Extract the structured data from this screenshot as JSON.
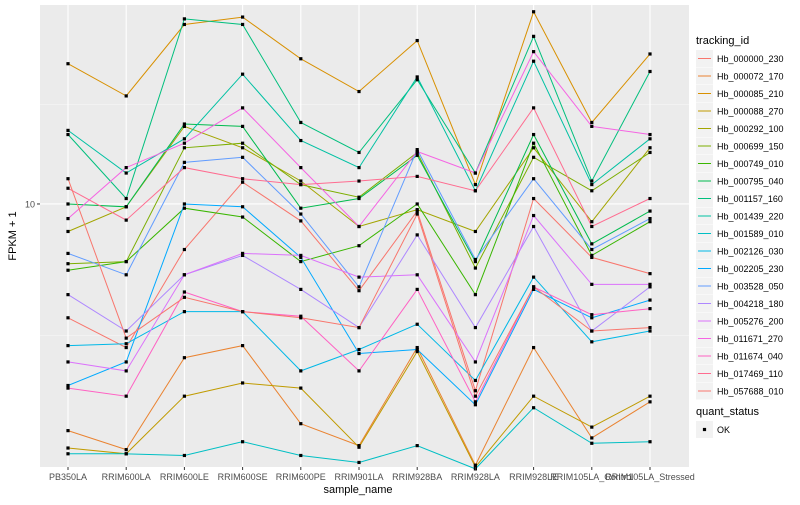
{
  "chart_data": {
    "type": "line",
    "title": "",
    "xlabel": "sample_name",
    "ylabel": "FPKM + 1",
    "y_scale": "log",
    "y_ticks": [
      10
    ],
    "y_tick_labels": [
      "10"
    ],
    "ylim": [
      1.5,
      42
    ],
    "grid": true,
    "legend_position": "right",
    "categories": [
      "PB350LA",
      "RRIM600LA",
      "RRIM600LE",
      "RRIM600SE",
      "RRIM600PE",
      "RRIM901LA",
      "RRIM928BA",
      "RRIM928LA",
      "RRIM928LE",
      "RRIM105LA_Control",
      "RRIM105LA_Stressed"
    ],
    "legend_title": "tracking_id",
    "shape_legend": {
      "title": "quant_status",
      "items": [
        "OK"
      ]
    },
    "series": [
      {
        "name": "Hb_000000_230",
        "color": "#F8766D",
        "values": [
          4.4,
          3.55,
          7.2,
          11.7,
          8.85,
          5.35,
          9.5,
          2.6,
          10.4,
          6.8,
          6.05
        ]
      },
      {
        "name": "Hb_000072_170",
        "color": "#EA8331",
        "values": [
          1.95,
          1.7,
          3.3,
          3.6,
          2.05,
          1.75,
          3.55,
          1.52,
          3.55,
          1.85,
          2.4
        ]
      },
      {
        "name": "Hb_000085_210",
        "color": "#D89000",
        "values": [
          27.5,
          21.8,
          36.5,
          38.5,
          28.5,
          22.5,
          32.5,
          11.5,
          40,
          18,
          29.5
        ]
      },
      {
        "name": "Hb_000088_270",
        "color": "#C09B00",
        "values": [
          1.72,
          1.65,
          2.5,
          2.75,
          2.65,
          1.73,
          3.45,
          1.5,
          2.5,
          2.0,
          2.5
        ]
      },
      {
        "name": "Hb_000292_100",
        "color": "#A3A500",
        "values": [
          8.2,
          9.8,
          17.5,
          15.0,
          11.8,
          8.5,
          9.6,
          8.2,
          15.0,
          8.8,
          15.0
        ]
      },
      {
        "name": "Hb_000699_150",
        "color": "#7CAE00",
        "values": [
          6.5,
          6.6,
          15.0,
          15.5,
          11.5,
          10.5,
          14.5,
          6.3,
          14.0,
          11.0,
          14.5
        ]
      },
      {
        "name": "Hb_000749_010",
        "color": "#39B600",
        "values": [
          6.2,
          6.6,
          9.7,
          9.1,
          6.6,
          7.4,
          10.0,
          5.2,
          15.5,
          6.9,
          8.8
        ]
      },
      {
        "name": "Hb_000795_040",
        "color": "#00BB4E",
        "values": [
          10.0,
          9.8,
          17.8,
          17.5,
          9.7,
          10.4,
          14.2,
          6.6,
          16.5,
          7.5,
          9.5
        ]
      },
      {
        "name": "Hb_001157_160",
        "color": "#00BF7D",
        "values": [
          16.5,
          10.4,
          38.0,
          36.5,
          18.0,
          14.5,
          24.5,
          12.5,
          33.5,
          11.8,
          26.0
        ]
      },
      {
        "name": "Hb_001439_220",
        "color": "#00C1A3",
        "values": [
          17.0,
          12.5,
          16.0,
          25.5,
          15.8,
          13.0,
          25.0,
          11.0,
          28.0,
          11.5,
          16.0
        ]
      },
      {
        "name": "Hb_001589_010",
        "color": "#00BFC4",
        "values": [
          1.65,
          1.65,
          1.63,
          1.8,
          1.63,
          1.55,
          1.75,
          1.48,
          2.3,
          1.78,
          1.8
        ]
      },
      {
        "name": "Hb_002126_030",
        "color": "#00B8E7",
        "values": [
          3.6,
          3.65,
          4.6,
          4.6,
          3.0,
          3.5,
          4.2,
          2.8,
          5.9,
          3.7,
          4.0
        ]
      },
      {
        "name": "Hb_002205_230",
        "color": "#00A9FF",
        "values": [
          2.7,
          3.2,
          10.0,
          9.8,
          6.8,
          3.4,
          3.5,
          2.35,
          5.4,
          4.4,
          5.0
        ]
      },
      {
        "name": "Hb_003528_050",
        "color": "#619CFF",
        "values": [
          7.0,
          6.0,
          13.5,
          14.0,
          9.3,
          5.5,
          14.8,
          6.7,
          12.0,
          7.2,
          9.0
        ]
      },
      {
        "name": "Hb_004218_180",
        "color": "#AE87FF",
        "values": [
          5.2,
          4.0,
          6.0,
          6.9,
          5.4,
          4.1,
          8.0,
          4.1,
          8.5,
          4.0,
          5.5
        ]
      },
      {
        "name": "Hb_005276_200",
        "color": "#DB72FB",
        "values": [
          3.2,
          3.0,
          6.0,
          7.0,
          6.9,
          5.9,
          6.0,
          3.2,
          9.2,
          5.6,
          5.6
        ]
      },
      {
        "name": "Hb_011671_270",
        "color": "#F564E3",
        "values": [
          9.0,
          13.0,
          15.5,
          20.0,
          13.0,
          8.5,
          14.6,
          12.5,
          30.0,
          17.5,
          16.5
        ]
      },
      {
        "name": "Hb_011674_040",
        "color": "#FF61C3",
        "values": [
          2.65,
          2.5,
          5.3,
          4.6,
          4.45,
          3.0,
          5.4,
          2.4,
          5.5,
          4.5,
          4.7
        ]
      },
      {
        "name": "Hb_017469_110",
        "color": "#FF6C90",
        "values": [
          11.2,
          8.9,
          13.0,
          12.0,
          11.5,
          11.8,
          12.2,
          11.0,
          20.0,
          8.5,
          10.4
        ]
      },
      {
        "name": "Hb_057688_010",
        "color": "#F8766D",
        "values": [
          12.0,
          3.8,
          5.1,
          4.6,
          4.4,
          4.1,
          9.3,
          2.5,
          5.5,
          4.0,
          4.1
        ]
      }
    ]
  }
}
